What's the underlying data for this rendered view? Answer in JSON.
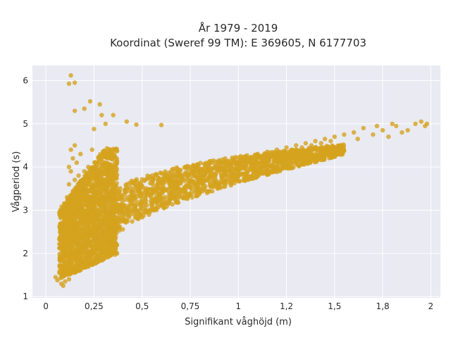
{
  "chart_data": {
    "type": "scatter",
    "title": [
      "År 1979 - 2019",
      "Koordinat (Sweref 99 TM): E 369605, N 6177703"
    ],
    "xlabel": "Signifikant våghöjd (m)",
    "ylabel": "Vågperiod (s)",
    "xlim": [
      -0.07,
      2.05
    ],
    "ylim": [
      0.97,
      6.35
    ],
    "x_ticks": [
      0,
      0.25,
      0.5,
      0.75,
      1,
      1.25,
      1.5,
      1.75,
      2
    ],
    "x_tick_labels": [
      "0",
      "0,25",
      "0,5",
      "0,75",
      "1",
      "1,2",
      "1,5",
      "1,8",
      "2"
    ],
    "y_ticks": [
      1,
      2,
      3,
      4,
      5,
      6
    ],
    "y_tick_labels": [
      "1",
      "2",
      "3",
      "4",
      "5",
      "6"
    ],
    "grid": true,
    "legend": "none",
    "colors": {
      "points": "#d4a31e",
      "plot_bg": "#e9eaf2",
      "grid": "#ffffff"
    },
    "series": [
      {
        "values_xy": [
          [
            0.05,
            1.45
          ],
          [
            0.06,
            1.38
          ],
          [
            0.07,
            1.55
          ],
          [
            0.08,
            1.3
          ],
          [
            0.08,
            1.7
          ],
          [
            0.09,
            1.25
          ],
          [
            0.09,
            1.9
          ],
          [
            0.1,
            1.35
          ],
          [
            0.1,
            2.1
          ],
          [
            0.1,
            2.6
          ],
          [
            0.11,
            1.6
          ],
          [
            0.11,
            2.9
          ],
          [
            0.11,
            3.3
          ],
          [
            0.12,
            1.4
          ],
          [
            0.12,
            2.2
          ],
          [
            0.12,
            3.6
          ],
          [
            0.12,
            4.0
          ],
          [
            0.13,
            1.8
          ],
          [
            0.13,
            2.5
          ],
          [
            0.13,
            3.0
          ],
          [
            0.13,
            3.9
          ],
          [
            0.13,
            4.4
          ],
          [
            0.14,
            2.0
          ],
          [
            0.14,
            2.8
          ],
          [
            0.14,
            3.4
          ],
          [
            0.14,
            4.2
          ],
          [
            0.15,
            2.3
          ],
          [
            0.15,
            3.1
          ],
          [
            0.15,
            3.7
          ],
          [
            0.15,
            4.5
          ],
          [
            0.16,
            2.6
          ],
          [
            0.16,
            3.3
          ],
          [
            0.16,
            4.1
          ],
          [
            0.17,
            2.1
          ],
          [
            0.17,
            2.9
          ],
          [
            0.17,
            3.8
          ],
          [
            0.18,
            2.4
          ],
          [
            0.18,
            3.2
          ],
          [
            0.18,
            4.3
          ],
          [
            0.19,
            2.7
          ],
          [
            0.19,
            3.5
          ],
          [
            0.2,
            2.2
          ],
          [
            0.2,
            3.0
          ],
          [
            0.2,
            3.9
          ],
          [
            0.21,
            2.5
          ],
          [
            0.21,
            3.4
          ],
          [
            0.22,
            2.0
          ],
          [
            0.22,
            2.8
          ],
          [
            0.22,
            4.0
          ],
          [
            0.23,
            3.1
          ],
          [
            0.23,
            3.7
          ],
          [
            0.24,
            2.4
          ],
          [
            0.24,
            4.4
          ],
          [
            0.25,
            2.9
          ],
          [
            0.25,
            3.5
          ],
          [
            0.26,
            2.3
          ],
          [
            0.26,
            4.1
          ],
          [
            0.27,
            3.2
          ],
          [
            0.28,
            2.6
          ],
          [
            0.28,
            3.8
          ],
          [
            0.29,
            2.2
          ],
          [
            0.3,
            3.0
          ],
          [
            0.3,
            4.3
          ],
          [
            0.31,
            2.7
          ],
          [
            0.32,
            3.4
          ],
          [
            0.33,
            2.5
          ],
          [
            0.34,
            3.9
          ],
          [
            0.35,
            2.9
          ],
          [
            0.36,
            3.3
          ],
          [
            0.38,
            2.6
          ],
          [
            0.4,
            3.1
          ],
          [
            0.42,
            3.6
          ],
          [
            0.44,
            2.9
          ],
          [
            0.46,
            3.3
          ],
          [
            0.48,
            2.8
          ],
          [
            0.5,
            3.2
          ],
          [
            0.52,
            3.0
          ],
          [
            0.55,
            3.4
          ],
          [
            0.58,
            3.2
          ],
          [
            0.6,
            3.6
          ],
          [
            0.62,
            3.3
          ],
          [
            0.65,
            3.7
          ],
          [
            0.68,
            3.4
          ],
          [
            0.7,
            3.8
          ],
          [
            0.72,
            3.5
          ],
          [
            0.75,
            3.7
          ],
          [
            0.78,
            3.6
          ],
          [
            0.8,
            3.9
          ],
          [
            0.82,
            3.7
          ],
          [
            0.85,
            4.0
          ],
          [
            0.88,
            3.8
          ],
          [
            0.9,
            4.0
          ],
          [
            0.93,
            3.9
          ],
          [
            0.95,
            4.1
          ],
          [
            0.98,
            3.95
          ],
          [
            1.0,
            4.1
          ],
          [
            1.03,
            4.0
          ],
          [
            1.05,
            4.2
          ],
          [
            1.08,
            4.1
          ],
          [
            1.1,
            4.3
          ],
          [
            1.13,
            4.15
          ],
          [
            1.15,
            4.35
          ],
          [
            1.18,
            4.25
          ],
          [
            1.2,
            4.4
          ],
          [
            1.23,
            4.3
          ],
          [
            1.25,
            4.45
          ],
          [
            1.28,
            4.35
          ],
          [
            1.3,
            4.5
          ],
          [
            1.33,
            4.45
          ],
          [
            1.35,
            4.55
          ],
          [
            1.38,
            4.5
          ],
          [
            1.4,
            4.6
          ],
          [
            1.43,
            4.55
          ],
          [
            1.45,
            4.65
          ],
          [
            1.48,
            4.6
          ],
          [
            1.5,
            4.7
          ],
          [
            1.55,
            4.75
          ],
          [
            1.6,
            4.8
          ],
          [
            1.62,
            4.65
          ],
          [
            1.65,
            4.9
          ],
          [
            1.7,
            4.75
          ],
          [
            1.72,
            4.95
          ],
          [
            1.75,
            4.85
          ],
          [
            1.78,
            4.7
          ],
          [
            1.8,
            5.0
          ],
          [
            1.82,
            4.95
          ],
          [
            1.85,
            4.8
          ],
          [
            1.88,
            4.85
          ],
          [
            1.92,
            5.0
          ],
          [
            1.95,
            5.05
          ],
          [
            1.97,
            4.95
          ],
          [
            1.98,
            5.0
          ],
          [
            0.13,
            6.12
          ],
          [
            0.12,
            5.93
          ],
          [
            0.15,
            5.95
          ],
          [
            0.28,
            5.45
          ],
          [
            0.23,
            5.52
          ],
          [
            0.15,
            5.3
          ],
          [
            0.2,
            5.35
          ],
          [
            0.29,
            5.2
          ],
          [
            0.35,
            5.2
          ],
          [
            0.42,
            5.05
          ],
          [
            0.47,
            4.98
          ],
          [
            0.6,
            4.97
          ],
          [
            0.31,
            5.0
          ],
          [
            0.25,
            4.88
          ]
        ]
      }
    ]
  }
}
